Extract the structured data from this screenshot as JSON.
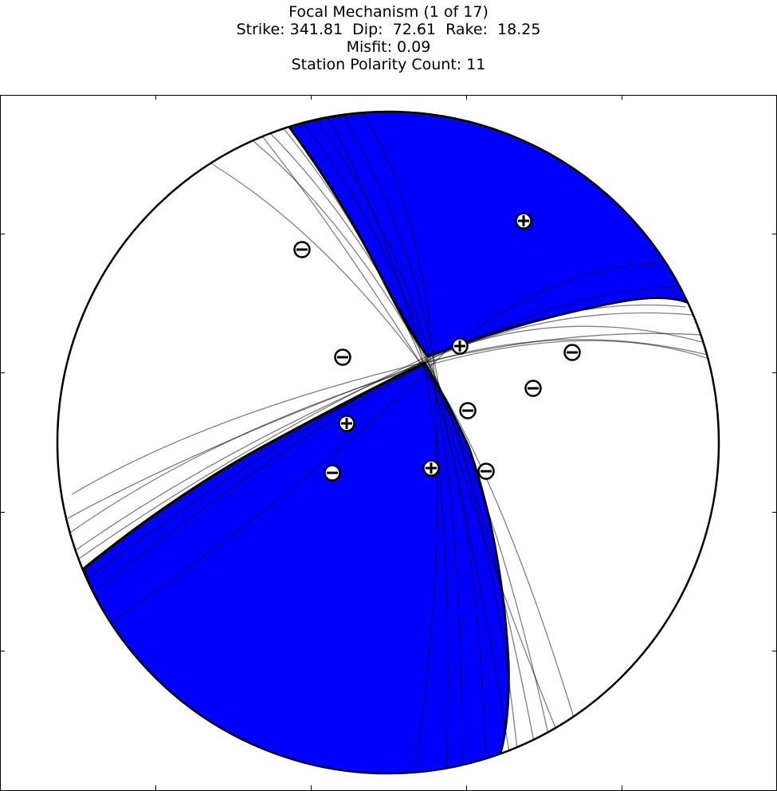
{
  "title_lines": [
    "Focal Mechanism (1 of 17)",
    "Strike: 341.81  Dip:  72.61  Rake:  18.25",
    "Misfit: 0.09",
    "Station Polarity Count: 11"
  ],
  "colors": {
    "compressional_fill": "#0000ff",
    "dilatational_fill": "#ffffff",
    "outline": "#000000",
    "nodal_planes_alt": "#000000"
  },
  "mechanism": {
    "strike": 341.81,
    "dip": 72.61,
    "rake": 18.25
  },
  "stations": [
    {
      "polarity": "-"
    },
    {
      "polarity": "+"
    },
    {
      "polarity": "-"
    },
    {
      "polarity": "+"
    },
    {
      "polarity": "-"
    },
    {
      "polarity": "+"
    },
    {
      "polarity": "-"
    },
    {
      "polarity": "-"
    },
    {
      "polarity": "-"
    },
    {
      "polarity": "+"
    },
    {
      "polarity": "-"
    }
  ]
}
